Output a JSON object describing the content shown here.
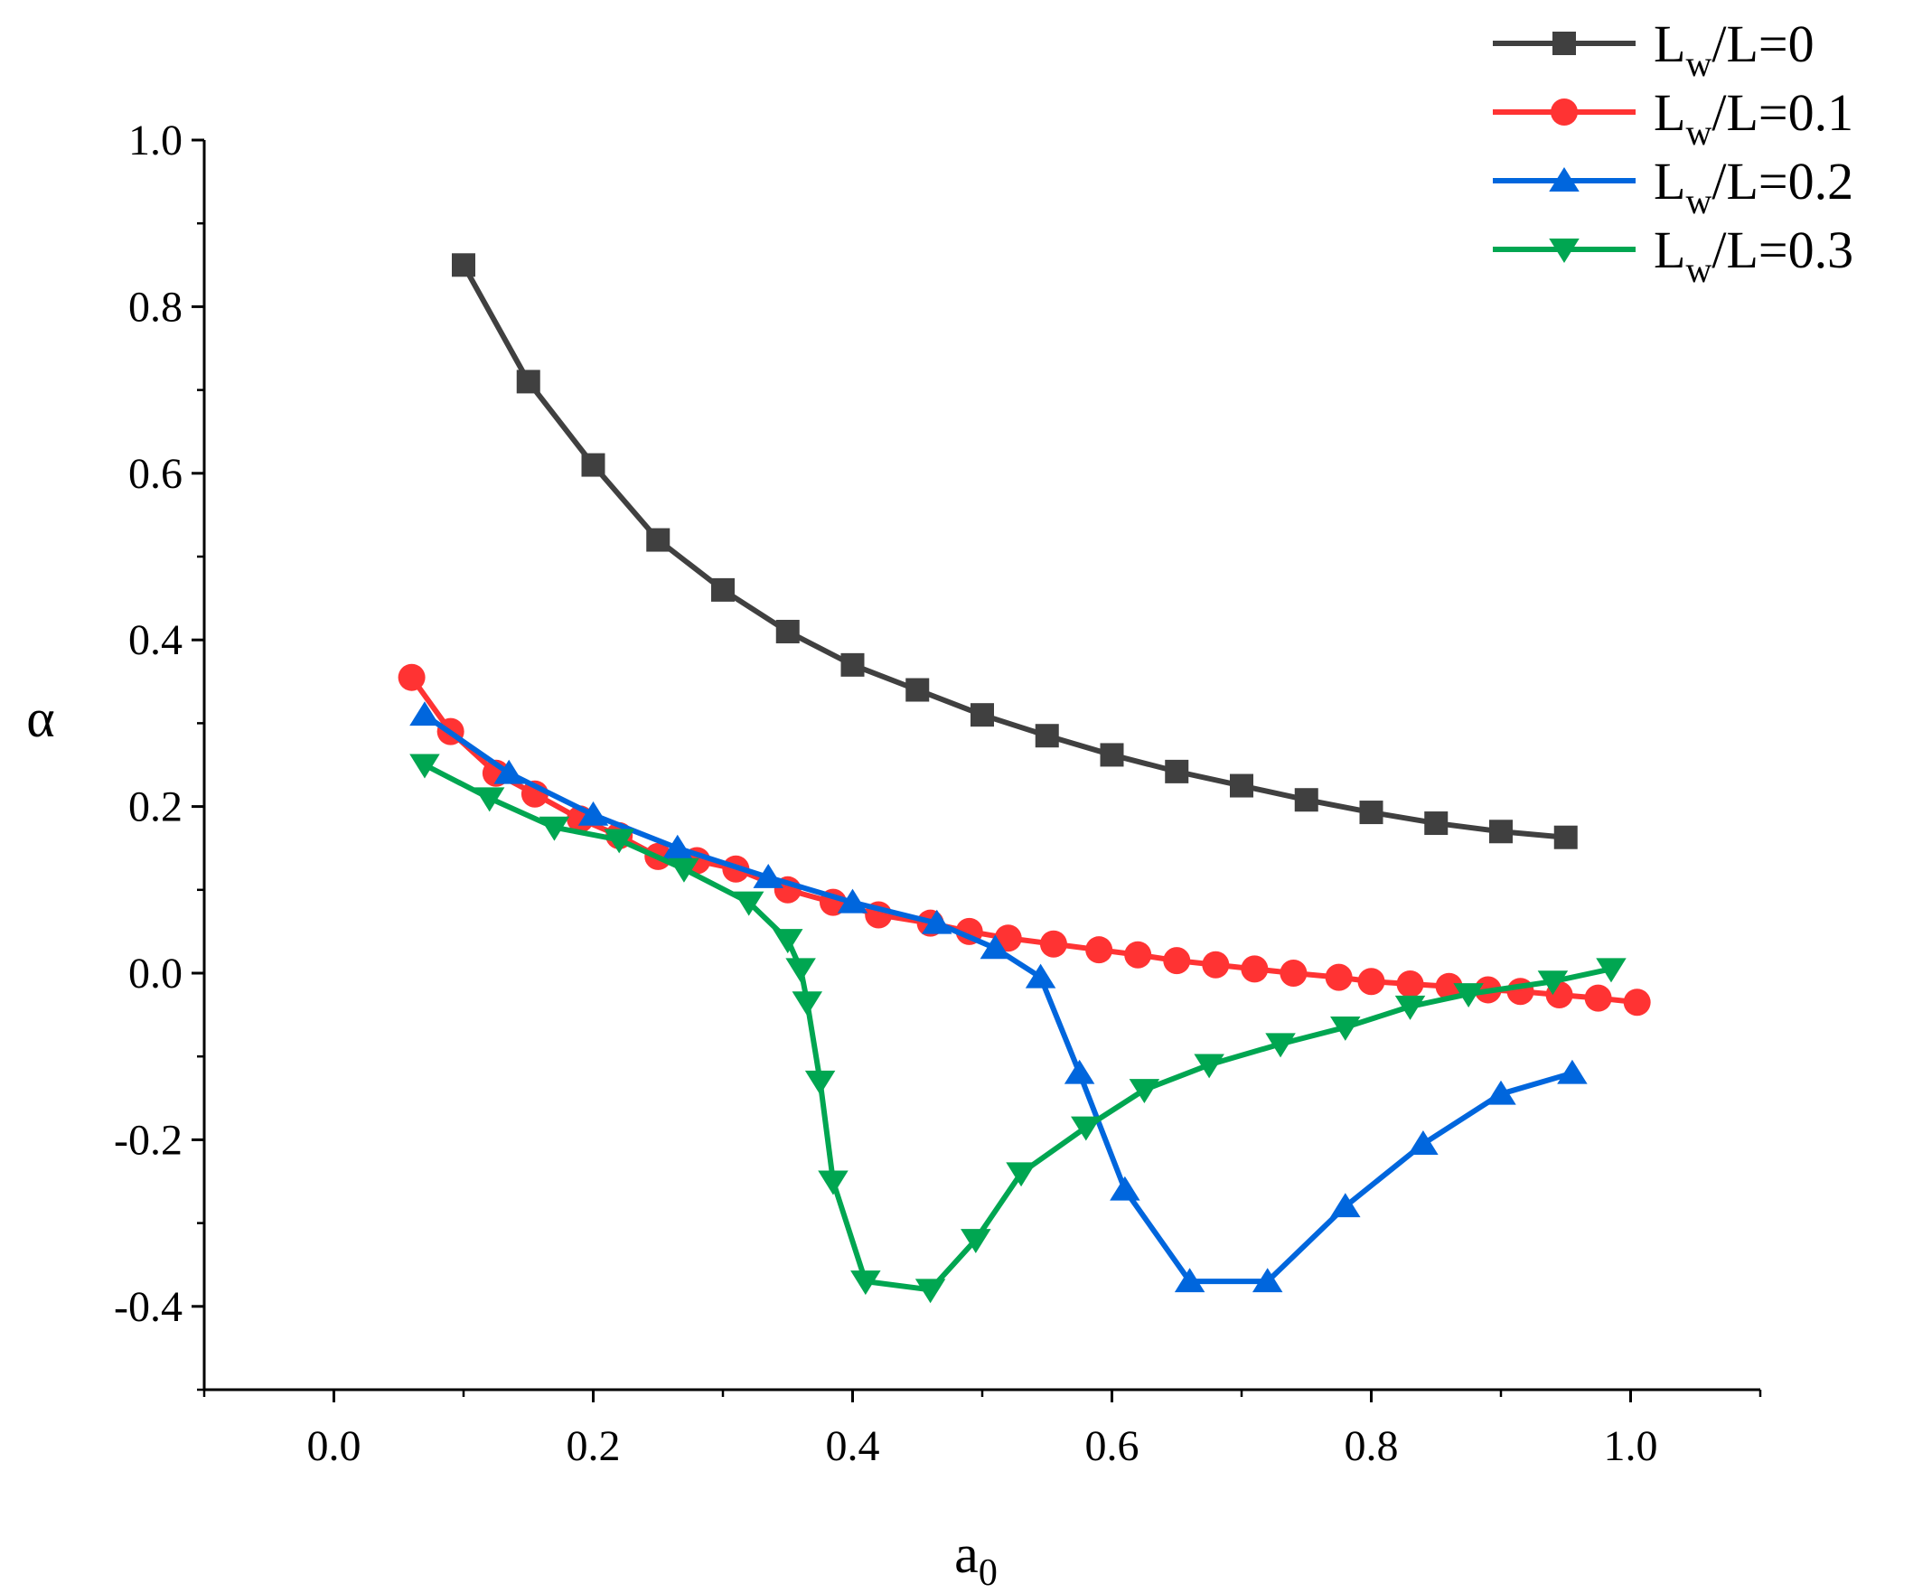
{
  "chart_data": {
    "type": "line",
    "title": "",
    "xlabel": {
      "main": "a",
      "sub": "0"
    },
    "ylabel": "α",
    "xlim": [
      -0.1,
      1.1
    ],
    "ylim": [
      -0.5,
      1.0
    ],
    "xticks": [
      "0.0",
      "0.2",
      "0.4",
      "0.6",
      "0.8",
      "1.0"
    ],
    "xtick_values": [
      0.0,
      0.2,
      0.4,
      0.6,
      0.8,
      1.0
    ],
    "yticks": [
      "-0.4",
      "-0.2",
      "0.0",
      "0.2",
      "0.4",
      "0.6",
      "0.8",
      "1.0"
    ],
    "ytick_values": [
      -0.4,
      -0.2,
      0.0,
      0.2,
      0.4,
      0.6,
      0.8,
      1.0
    ],
    "grid": false,
    "legend_position": "top-right",
    "series": [
      {
        "name": "Lw/L=0",
        "label": {
          "pre": "L",
          "sub": "w",
          "post": "/L=0"
        },
        "color": "#404040",
        "marker": "square",
        "x": [
          0.1,
          0.15,
          0.2,
          0.25,
          0.3,
          0.35,
          0.4,
          0.45,
          0.5,
          0.55,
          0.6,
          0.65,
          0.7,
          0.75,
          0.8,
          0.85,
          0.9,
          0.95
        ],
        "y": [
          0.85,
          0.71,
          0.61,
          0.52,
          0.46,
          0.41,
          0.37,
          0.34,
          0.31,
          0.285,
          0.262,
          0.242,
          0.225,
          0.208,
          0.193,
          0.18,
          0.17,
          0.163
        ]
      },
      {
        "name": "Lw/L=0.1",
        "label": {
          "pre": "L",
          "sub": "w",
          "post": "/L=0.1"
        },
        "color": "#ff3333",
        "marker": "circle",
        "x": [
          0.06,
          0.09,
          0.125,
          0.155,
          0.19,
          0.22,
          0.25,
          0.28,
          0.31,
          0.35,
          0.385,
          0.42,
          0.46,
          0.49,
          0.52,
          0.555,
          0.59,
          0.62,
          0.65,
          0.68,
          0.71,
          0.74,
          0.775,
          0.8,
          0.83,
          0.86,
          0.89,
          0.915,
          0.945,
          0.975,
          1.005
        ],
        "y": [
          0.355,
          0.29,
          0.24,
          0.215,
          0.185,
          0.165,
          0.14,
          0.135,
          0.125,
          0.1,
          0.085,
          0.07,
          0.06,
          0.05,
          0.042,
          0.035,
          0.028,
          0.022,
          0.015,
          0.01,
          0.005,
          0.0,
          -0.005,
          -0.01,
          -0.013,
          -0.016,
          -0.02,
          -0.022,
          -0.026,
          -0.03,
          -0.035
        ]
      },
      {
        "name": "Lw/L=0.2",
        "label": {
          "pre": "L",
          "sub": "w",
          "post": "/L=0.2"
        },
        "color": "#0066dd",
        "marker": "triangle-up",
        "x": [
          0.07,
          0.135,
          0.2,
          0.265,
          0.335,
          0.4,
          0.465,
          0.51,
          0.545,
          0.575,
          0.61,
          0.66,
          0.72,
          0.78,
          0.84,
          0.9,
          0.955
        ],
        "y": [
          0.31,
          0.24,
          0.19,
          0.15,
          0.115,
          0.085,
          0.06,
          0.03,
          -0.005,
          -0.12,
          -0.26,
          -0.37,
          -0.37,
          -0.28,
          -0.205,
          -0.145,
          -0.12
        ]
      },
      {
        "name": "Lw/L=0.3",
        "label": {
          "pre": "L",
          "sub": "w",
          "post": "/L=0.3"
        },
        "color": "#00a651",
        "marker": "triangle-down",
        "x": [
          0.07,
          0.12,
          0.17,
          0.22,
          0.27,
          0.32,
          0.35,
          0.36,
          0.365,
          0.375,
          0.385,
          0.41,
          0.46,
          0.495,
          0.53,
          0.58,
          0.625,
          0.675,
          0.73,
          0.78,
          0.83,
          0.875,
          0.94,
          0.985
        ],
        "y": [
          0.25,
          0.21,
          0.175,
          0.16,
          0.125,
          0.085,
          0.04,
          0.005,
          -0.035,
          -0.13,
          -0.25,
          -0.37,
          -0.38,
          -0.32,
          -0.24,
          -0.185,
          -0.14,
          -0.11,
          -0.085,
          -0.065,
          -0.04,
          -0.025,
          -0.01,
          0.005
        ]
      }
    ]
  }
}
